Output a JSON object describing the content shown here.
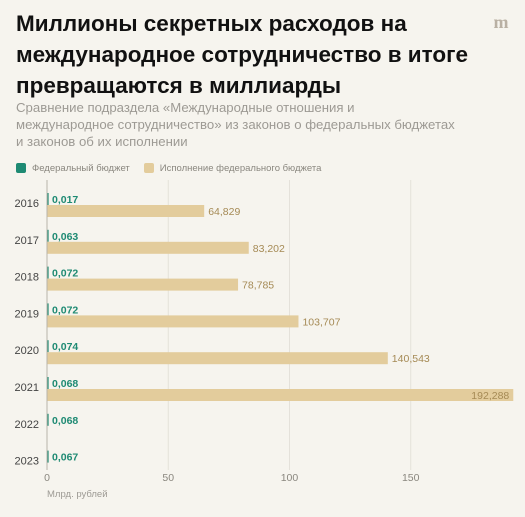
{
  "header": {
    "title": "Миллионы секретных расходов на международное сотрудничество в итоге превращаются в миллиарды",
    "subtitle": "Сравнение подраздела «Международные отношения и международное сотрудничество» из законов о федеральных бюджетах и законов об их исполнении",
    "logo_text": "m"
  },
  "chart_data": {
    "type": "bar",
    "orientation": "horizontal",
    "categories": [
      "2016",
      "2017",
      "2018",
      "2019",
      "2020",
      "2021",
      "2022",
      "2023"
    ],
    "series": [
      {
        "name": "Федеральный бюджет",
        "color": "#1e8a73",
        "values": [
          0.017,
          0.063,
          0.072,
          0.072,
          0.074,
          0.068,
          0.068,
          0.067
        ],
        "labels": [
          "0,017",
          "0,063",
          "0,072",
          "0,072",
          "0,074",
          "0,068",
          "0,068",
          "0,067"
        ]
      },
      {
        "name": "Исполнение федерального бюджета",
        "color": "#e3cc9c",
        "values": [
          64.829,
          83.202,
          78.785,
          103.707,
          140.543,
          192.288,
          null,
          null
        ],
        "labels": [
          "64,829",
          "83,202",
          "78,785",
          "103,707",
          "140,543",
          "192,288",
          "",
          ""
        ]
      }
    ],
    "x_ticks": [
      0,
      50,
      100,
      150
    ],
    "xlim": [
      0,
      193
    ],
    "xlabel": "Млрд. рублей",
    "grid": true,
    "legend_position": "top-left"
  }
}
